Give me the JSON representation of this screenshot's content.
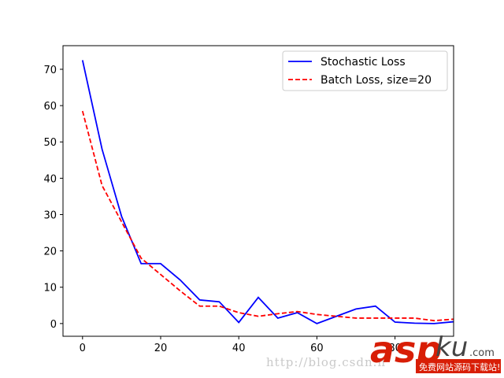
{
  "chart_data": {
    "type": "line",
    "title": "",
    "xlabel": "",
    "ylabel": "",
    "xlim": [
      -5,
      95
    ],
    "ylim": [
      -3.5,
      76.5
    ],
    "xticks": [
      0,
      20,
      40,
      60,
      80
    ],
    "yticks": [
      0,
      10,
      20,
      30,
      40,
      50,
      60,
      70
    ],
    "grid": false,
    "legend_position": "top-right",
    "series": [
      {
        "name": "Stochastic Loss",
        "color": "#0000ff",
        "style": "solid",
        "x": [
          0,
          5,
          10,
          15,
          20,
          25,
          30,
          35,
          40,
          45,
          50,
          55,
          60,
          65,
          70,
          75,
          80,
          85,
          90,
          95
        ],
        "y": [
          72.5,
          48,
          29.5,
          16.5,
          16.5,
          12,
          6.5,
          6,
          0.3,
          7.2,
          1.5,
          3,
          0,
          2,
          4,
          4.8,
          0.4,
          0.1,
          0,
          0.5
        ]
      },
      {
        "name": "Batch Loss, size=20",
        "color": "#ff0000",
        "style": "dashed",
        "x": [
          0,
          5,
          10,
          15,
          20,
          25,
          30,
          35,
          40,
          45,
          50,
          55,
          60,
          65,
          70,
          75,
          80,
          85,
          90,
          95
        ],
        "y": [
          58.5,
          38,
          28,
          18,
          13.5,
          9,
          4.8,
          4.8,
          3,
          2,
          2.7,
          3.3,
          2.5,
          2,
          1.5,
          1.5,
          1.5,
          1.5,
          0.8,
          1.2
        ]
      }
    ]
  },
  "watermark": {
    "url_text": "http://blog.csdn.n",
    "brand_main": "asp",
    "brand_ku": "ku",
    "brand_com": ".com",
    "brand_sub": "免费网站源码下载站!"
  }
}
